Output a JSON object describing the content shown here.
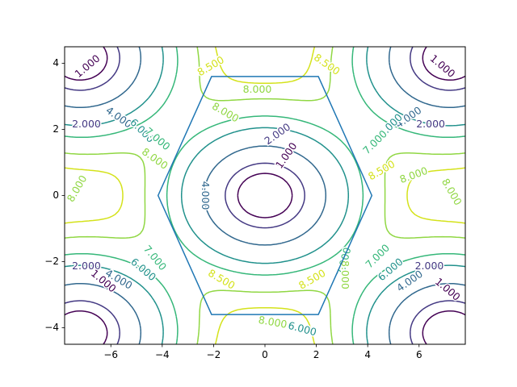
{
  "chart_data": {
    "type": "contour",
    "title": "",
    "xlabel": "",
    "ylabel": "",
    "xlim": [
      -7.8,
      7.8
    ],
    "ylim": [
      -4.5,
      4.5
    ],
    "xticks": [
      -6,
      -4,
      -2,
      0,
      2,
      4,
      6
    ],
    "yticks": [
      -4,
      -2,
      0,
      2,
      4
    ],
    "grid": false,
    "levels": [
      1.0,
      2.0,
      4.0,
      6.0,
      7.0,
      8.0,
      8.5
    ],
    "level_labels": [
      "1.000",
      "2.000",
      "4.000",
      "6.000",
      "7.000",
      "8.000",
      "8.500"
    ],
    "level_colors": [
      "#440154",
      "#443983",
      "#31688e",
      "#21918c",
      "#35b779",
      "#90d743",
      "#d4e21a"
    ],
    "minima_centers": [
      [
        0,
        0
      ],
      [
        -7.2,
        4.16
      ],
      [
        7.2,
        4.16
      ],
      [
        -7.2,
        -4.16
      ],
      [
        7.2,
        -4.16
      ]
    ],
    "hexagon": {
      "color": "#1f77b4",
      "vertices": [
        [
          4.16,
          0
        ],
        [
          2.08,
          3.6
        ],
        [
          -2.08,
          3.6
        ],
        [
          -4.16,
          0
        ],
        [
          -2.08,
          -3.6
        ],
        [
          2.08,
          -3.6
        ]
      ]
    }
  }
}
